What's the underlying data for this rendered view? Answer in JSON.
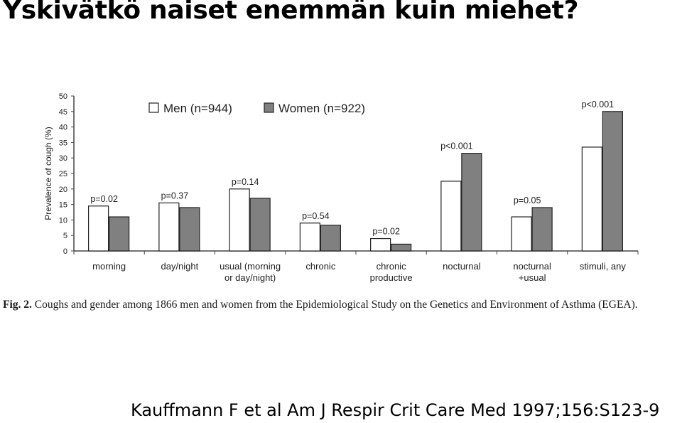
{
  "slide": {
    "title": "Yskivätkö naiset enemmän kuin miehet?",
    "caption_label": "Fig. 2.",
    "caption_text": "Coughs and gender among 1866 men and women from the Epidemiological Study on the Genetics and Environment of Asthma (EGEA).",
    "citation": "Kauffmann F et al Am J Respir Crit Care Med 1997;156:S123-9"
  },
  "chart_data": {
    "type": "bar",
    "ylabel": "Prevalence of cough (%)",
    "xlabel": "",
    "ylim": [
      0,
      50
    ],
    "yticks": [
      0,
      5,
      10,
      15,
      20,
      25,
      30,
      35,
      40,
      45,
      50
    ],
    "grid": false,
    "legend_position": "top",
    "categories": [
      [
        "morning"
      ],
      [
        "day/night"
      ],
      [
        "usual (morning",
        "or day/night)"
      ],
      [
        "chronic"
      ],
      [
        "chronic",
        "productive"
      ],
      [
        "nocturnal"
      ],
      [
        "nocturnal",
        "+usual"
      ],
      [
        "stimuli, any"
      ]
    ],
    "p_values": [
      "p=0.02",
      "p=0.37",
      "p=0.14",
      "p=0.54",
      "p=0.02",
      "p<0.001",
      "p=0.05",
      "p<0.001"
    ],
    "series": [
      {
        "name": "Men (n=944)",
        "color": "#ffffff",
        "values": [
          14.5,
          15.5,
          20,
          9,
          4,
          22.5,
          11,
          33.5
        ]
      },
      {
        "name": "Women (n=922)",
        "color": "#808080",
        "values": [
          11,
          14,
          17,
          8.3,
          2.2,
          31.5,
          14,
          45
        ]
      }
    ]
  }
}
